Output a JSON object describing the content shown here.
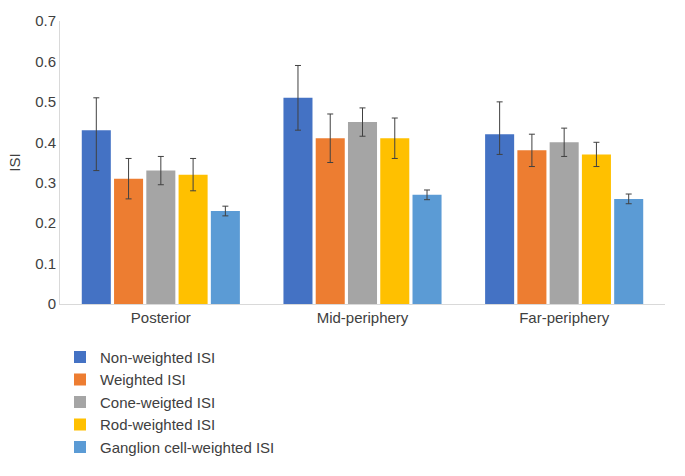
{
  "chart_data": {
    "type": "bar",
    "y_label": "ISI",
    "categories": [
      "Posterior",
      "Mid-periphery",
      "Far-periphery"
    ],
    "series": [
      {
        "name": "Non-weighted ISI",
        "color": "#4472C4",
        "values": [
          0.43,
          0.51,
          0.42
        ],
        "error_plus": [
          0.08,
          0.08,
          0.08
        ],
        "error_minus": [
          0.1,
          0.08,
          0.05
        ]
      },
      {
        "name": "Weighted ISI",
        "color": "#ED7D31",
        "values": [
          0.31,
          0.41,
          0.38
        ],
        "error_plus": [
          0.05,
          0.06,
          0.04
        ],
        "error_minus": [
          0.05,
          0.06,
          0.04
        ]
      },
      {
        "name": "Cone-weigted ISI",
        "color": "#A5A5A5",
        "values": [
          0.33,
          0.45,
          0.4
        ],
        "error_plus": [
          0.035,
          0.035,
          0.035
        ],
        "error_minus": [
          0.035,
          0.035,
          0.035
        ]
      },
      {
        "name": "Rod-weighted ISI",
        "color": "#FFC000",
        "values": [
          0.32,
          0.41,
          0.37
        ],
        "error_plus": [
          0.04,
          0.05,
          0.03
        ],
        "error_minus": [
          0.04,
          0.05,
          0.03
        ]
      },
      {
        "name": "Ganglion cell-weighted ISI",
        "color": "#5B9BD5",
        "values": [
          0.23,
          0.27,
          0.26
        ],
        "error_plus": [
          0.012,
          0.012,
          0.012
        ],
        "error_minus": [
          0.012,
          0.012,
          0.012
        ]
      }
    ],
    "ylim": [
      0,
      0.7
    ],
    "yticks": [
      0,
      0.1,
      0.2,
      0.3,
      0.4,
      0.5,
      0.6,
      0.7
    ],
    "grid": false,
    "legend": "bottom"
  }
}
